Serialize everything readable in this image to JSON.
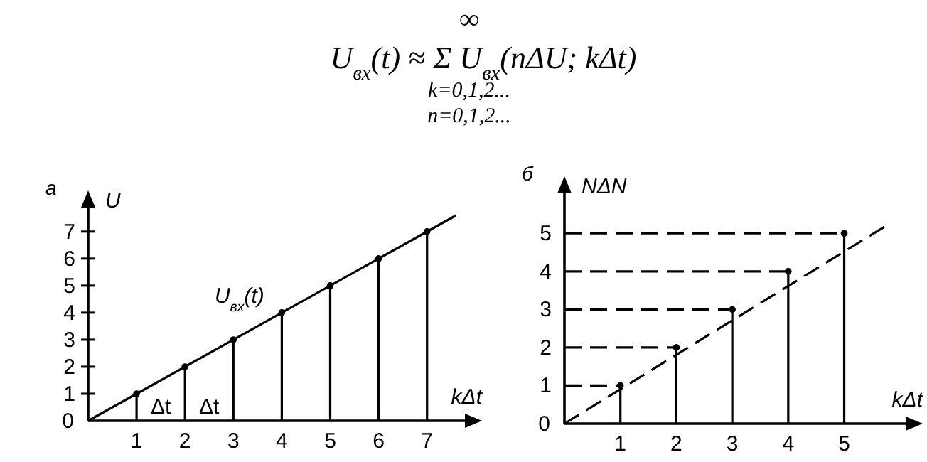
{
  "chart_data": [
    {
      "type": "other",
      "title": "U$_{вх}$(t) ≈ Σ U$_{вх}$(nΔU; kΔt)",
      "annotations": [
        "∞",
        "k=0,1,2...",
        "n=0,1,2..."
      ]
    },
    {
      "type": "lollipop",
      "title": "а",
      "xlabel": "kΔt",
      "ylabel": "U",
      "xlim": [
        0,
        7.9
      ],
      "ylim": [
        0,
        8.1
      ],
      "xticks": [
        1,
        2,
        3,
        4,
        5,
        6,
        7
      ],
      "yticks": [
        0,
        1,
        2,
        3,
        4,
        5,
        6,
        7
      ],
      "series": [
        {
          "type": "line",
          "name": "U$_{вх}$(t)",
          "color": "#000000",
          "line_style": "solid",
          "x": [
            0,
            7.6
          ],
          "values": [
            0,
            7.6
          ]
        },
        {
          "type": "lollipop",
          "color": "#000000",
          "marker": "circle",
          "x": [
            1,
            2,
            3,
            4,
            5,
            6,
            7
          ],
          "values": [
            1,
            2,
            3,
            4,
            5,
            6,
            7
          ]
        }
      ],
      "annotations": [
        "Δt",
        "Δt"
      ]
    },
    {
      "type": "lollipop",
      "title": "б",
      "xlabel": "kΔt",
      "ylabel": "NΔN",
      "xlim": [
        0,
        6.2
      ],
      "ylim": [
        0,
        6.2
      ],
      "xticks": [
        1,
        2,
        3,
        4,
        5
      ],
      "yticks": [
        0,
        1,
        2,
        3,
        4,
        5
      ],
      "series": [
        {
          "type": "line",
          "color": "#000000",
          "line_style": "dashed",
          "x": [
            0,
            5.75
          ],
          "values": [
            0,
            5.2
          ]
        },
        {
          "type": "line",
          "color": "#000000",
          "line_style": "dashed",
          "x": [
            0,
            1
          ],
          "values": [
            1,
            1
          ]
        },
        {
          "type": "line",
          "color": "#000000",
          "line_style": "dashed",
          "x": [
            0,
            2
          ],
          "values": [
            2,
            2
          ]
        },
        {
          "type": "line",
          "color": "#000000",
          "line_style": "dashed",
          "x": [
            0,
            3
          ],
          "values": [
            3,
            3
          ]
        },
        {
          "type": "line",
          "color": "#000000",
          "line_style": "dashed",
          "x": [
            0,
            4
          ],
          "values": [
            4,
            4
          ]
        },
        {
          "type": "line",
          "color": "#000000",
          "line_style": "dashed",
          "x": [
            0,
            5
          ],
          "values": [
            5,
            5
          ]
        },
        {
          "type": "lollipop",
          "color": "#000000",
          "marker": "circle",
          "x": [
            1,
            2,
            3,
            4,
            5
          ],
          "values": [
            1,
            2,
            3,
            4,
            5
          ]
        }
      ]
    }
  ]
}
